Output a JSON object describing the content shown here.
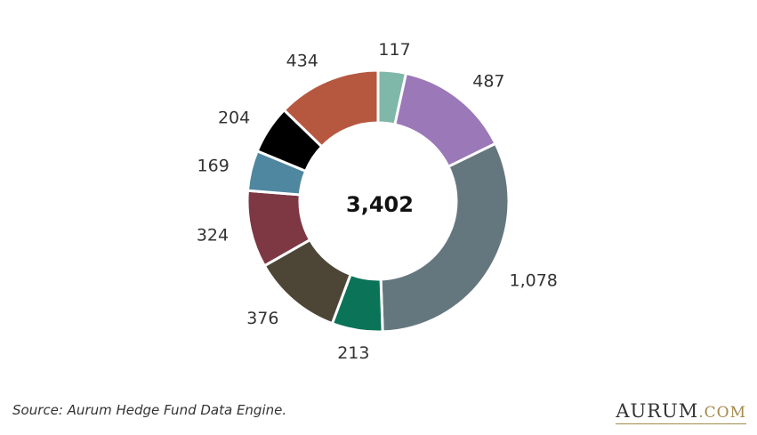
{
  "chart_data": {
    "type": "pie",
    "variant": "donut",
    "center_label": "3,402",
    "slices": [
      {
        "label": "117",
        "value": 117,
        "color": "#7fb7a8"
      },
      {
        "label": "487",
        "value": 487,
        "color": "#9b78b8"
      },
      {
        "label": "1,078",
        "value": 1078,
        "color": "#65777e"
      },
      {
        "label": "213",
        "value": 213,
        "color": "#0a7358"
      },
      {
        "label": "376",
        "value": 376,
        "color": "#4d4636"
      },
      {
        "label": "324",
        "value": 324,
        "color": "#7d3844"
      },
      {
        "label": "169",
        "value": 169,
        "color": "#4f87a0"
      },
      {
        "label": "204",
        "value": 204,
        "color": "#000000"
      },
      {
        "label": "434",
        "value": 434,
        "color": "#b65840"
      }
    ]
  },
  "footer": {
    "source": "Source: Aurum Hedge Fund Data Engine.",
    "brand_main": "AURUM",
    "brand_suffix": ".COM"
  }
}
